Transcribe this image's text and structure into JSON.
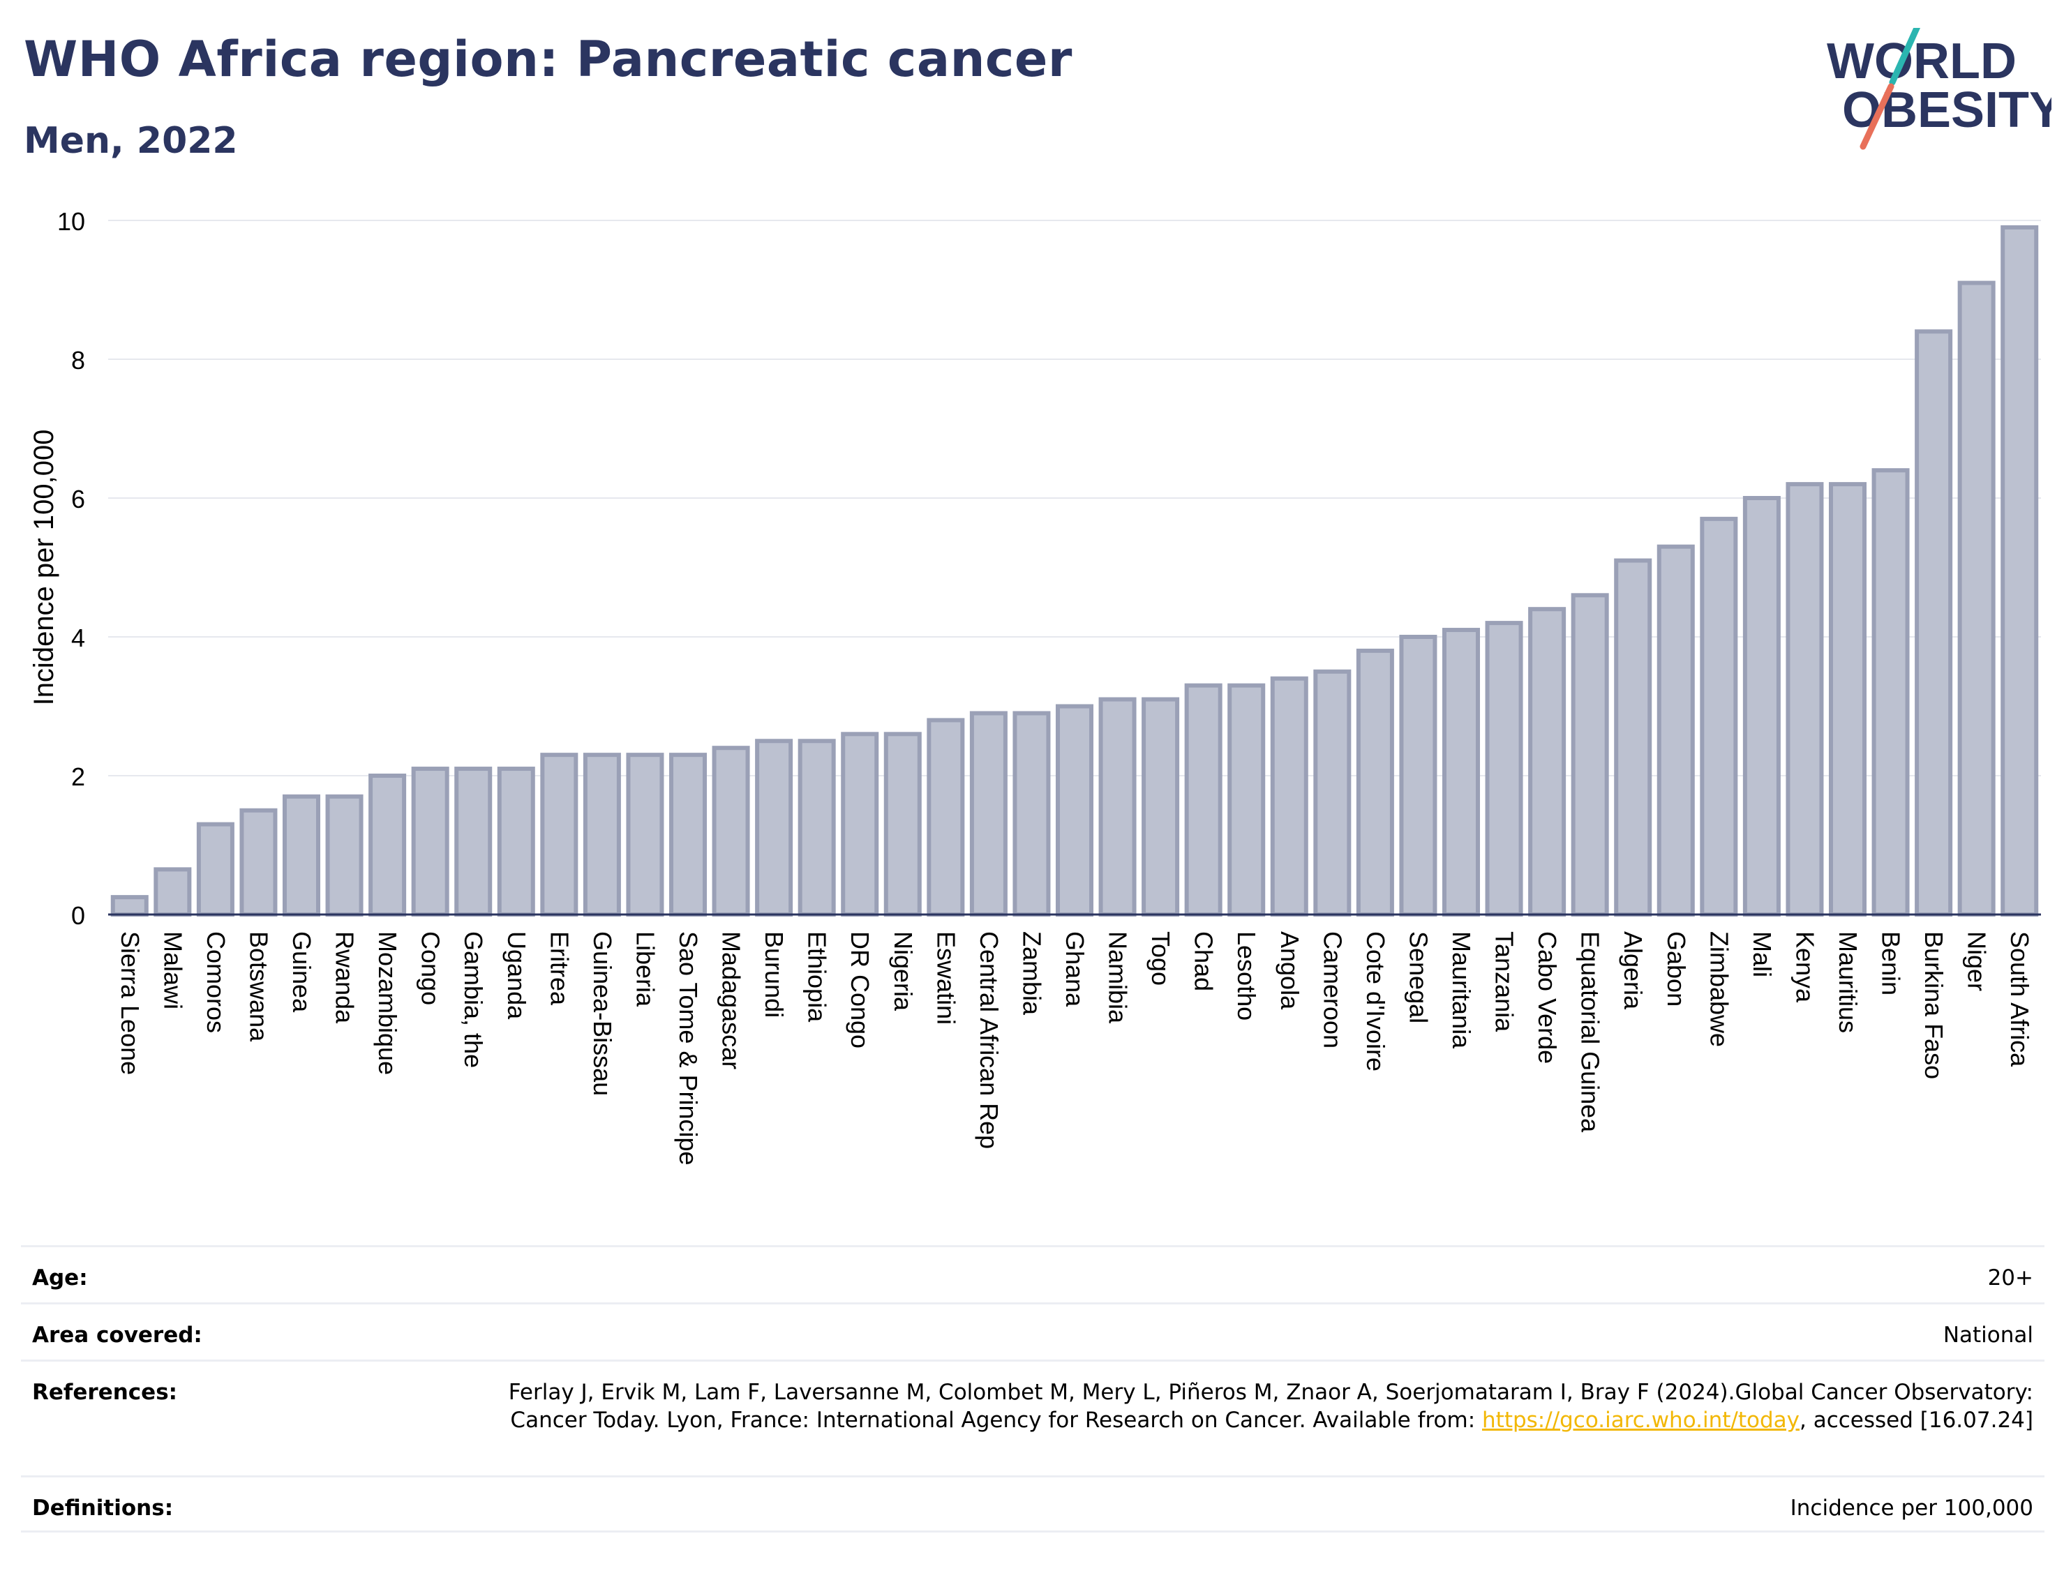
{
  "header": {
    "title": "WHO Africa region: Pancreatic cancer",
    "subtitle": "Men, 2022",
    "logo_line1": "WORLD",
    "logo_line2": "OBESITY"
  },
  "colors": {
    "title": "#2b3560",
    "bar_fill": "#bcc1d0",
    "bar_stroke": "#9aa0b6",
    "grid": "#e6e8ee",
    "axis": "#2b3560",
    "logo_teal": "#2bb5b0",
    "logo_red": "#e8705a",
    "link": "#f2b705"
  },
  "chart_data": {
    "type": "bar",
    "ylabel": "Incidence per 100,000",
    "ylim": [
      0,
      10
    ],
    "yticks": [
      0,
      2,
      4,
      6,
      8,
      10
    ],
    "grid": true,
    "categories": [
      "Sierra Leone",
      "Malawi",
      "Comoros",
      "Botswana",
      "Guinea",
      "Rwanda",
      "Mozambique",
      "Congo",
      "Gambia, the",
      "Uganda",
      "Eritrea",
      "Guinea-Bissau",
      "Liberia",
      "Sao Tome & Principe",
      "Madagascar",
      "Burundi",
      "Ethiopia",
      "DR Congo",
      "Nigeria",
      "Eswatini",
      "Central African Rep",
      "Zambia",
      "Ghana",
      "Namibia",
      "Togo",
      "Chad",
      "Lesotho",
      "Angola",
      "Cameroon",
      "Cote d'Ivoire",
      "Senegal",
      "Mauritania",
      "Tanzania",
      "Cabo Verde",
      "Equatorial Guinea",
      "Algeria",
      "Gabon",
      "Zimbabwe",
      "Mali",
      "Kenya",
      "Mauritius",
      "Benin",
      "Burkina Faso",
      "Niger",
      "South Africa"
    ],
    "values": [
      0.25,
      0.65,
      1.3,
      1.5,
      1.7,
      1.7,
      2.0,
      2.1,
      2.1,
      2.1,
      2.3,
      2.3,
      2.3,
      2.3,
      2.4,
      2.5,
      2.5,
      2.6,
      2.6,
      2.8,
      2.9,
      2.9,
      3.0,
      3.1,
      3.1,
      3.3,
      3.3,
      3.4,
      3.5,
      3.8,
      4.0,
      4.1,
      4.2,
      4.4,
      4.6,
      5.1,
      5.3,
      5.7,
      6.0,
      6.2,
      6.2,
      6.4,
      8.4,
      9.1,
      9.9
    ]
  },
  "meta": {
    "age_label": "Age:",
    "age_value": "20+",
    "area_label": "Area covered:",
    "area_value": "National",
    "references_label": "References:",
    "references_text1": "Ferlay J, Ervik M, Lam F, Laversanne M, Colombet M, Mery L, Piñeros M, Znaor A, Soerjomataram I, Bray F (2024).Global Cancer Observatory: Cancer Today. Lyon, France: International Agency for Research on Cancer. Available from: ",
    "references_link": "https://gco.iarc.who.int/today",
    "references_text2": ", accessed [16.07.24]",
    "definitions_label": "Definitions:",
    "definitions_value": "Incidence per 100,000"
  }
}
